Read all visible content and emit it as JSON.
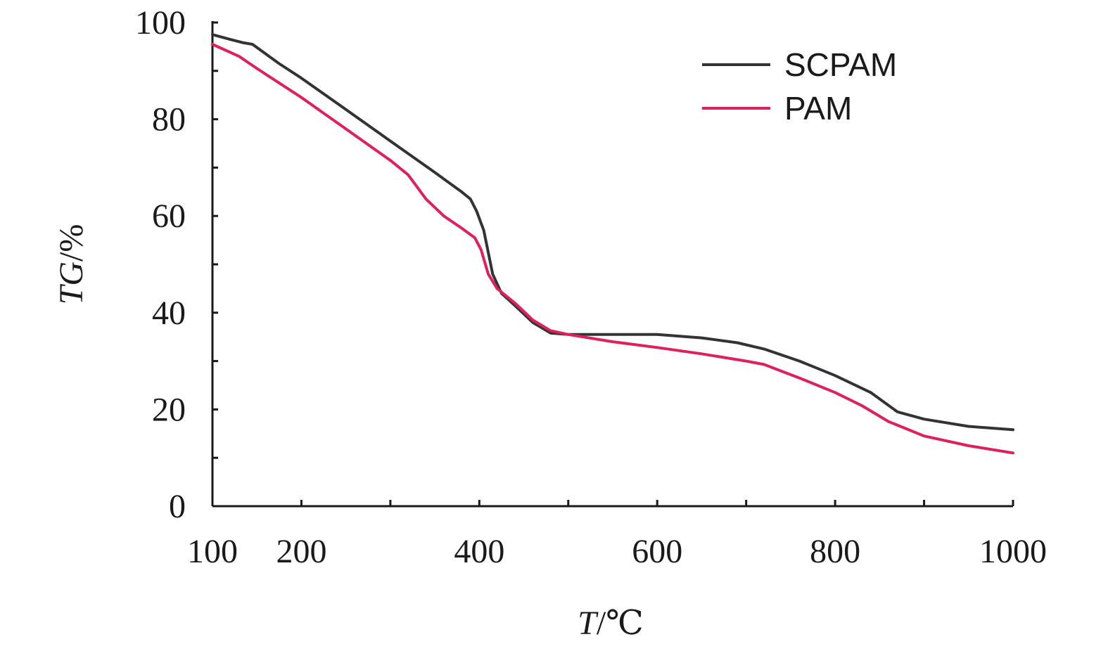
{
  "chart_data": {
    "type": "line",
    "xlabel_italic": "T",
    "xlabel_rest": "/℃",
    "ylabel_italic": "TG",
    "ylabel_rest": "/%",
    "xlim": [
      100,
      1000
    ],
    "ylim": [
      0,
      100
    ],
    "x_ticks_labeled": [
      100,
      200,
      400,
      600,
      800,
      1000
    ],
    "x_ticks_minor": [
      300,
      500,
      700,
      900
    ],
    "y_ticks_labeled": [
      0,
      20,
      40,
      60,
      80,
      100
    ],
    "y_ticks_minor": [
      10,
      30,
      50,
      70,
      90
    ],
    "grid": false,
    "legend_position": "top-right",
    "series": [
      {
        "name": "SCPAM",
        "color": "#333333",
        "x": [
          100,
          120,
          135,
          145,
          175,
          200,
          250,
          300,
          350,
          380,
          390,
          397,
          405,
          415,
          425,
          440,
          460,
          480,
          500,
          550,
          600,
          650,
          690,
          720,
          760,
          800,
          840,
          870,
          900,
          950,
          1000
        ],
        "y": [
          97.5,
          96.5,
          95.8,
          95.5,
          91.5,
          88.5,
          82.0,
          75.5,
          69.0,
          65.0,
          63.5,
          61.0,
          57.0,
          48.0,
          44.0,
          41.5,
          38.0,
          35.8,
          35.5,
          35.5,
          35.5,
          34.8,
          33.8,
          32.5,
          30.0,
          27.0,
          23.5,
          19.5,
          18.0,
          16.5,
          15.8
        ]
      },
      {
        "name": "PAM",
        "color": "#e0205a",
        "x": [
          100,
          130,
          150,
          200,
          250,
          300,
          320,
          340,
          360,
          380,
          395,
          402,
          410,
          420,
          440,
          460,
          480,
          500,
          550,
          600,
          650,
          700,
          720,
          760,
          800,
          830,
          860,
          900,
          950,
          1000
        ],
        "y": [
          95.5,
          93.0,
          90.5,
          84.5,
          78.0,
          71.5,
          68.5,
          63.5,
          60.0,
          57.5,
          55.5,
          53.0,
          48.0,
          45.0,
          42.0,
          38.5,
          36.3,
          35.5,
          34.0,
          32.8,
          31.5,
          30.0,
          29.3,
          26.5,
          23.5,
          20.8,
          17.5,
          14.5,
          12.5,
          11.0
        ]
      }
    ]
  }
}
